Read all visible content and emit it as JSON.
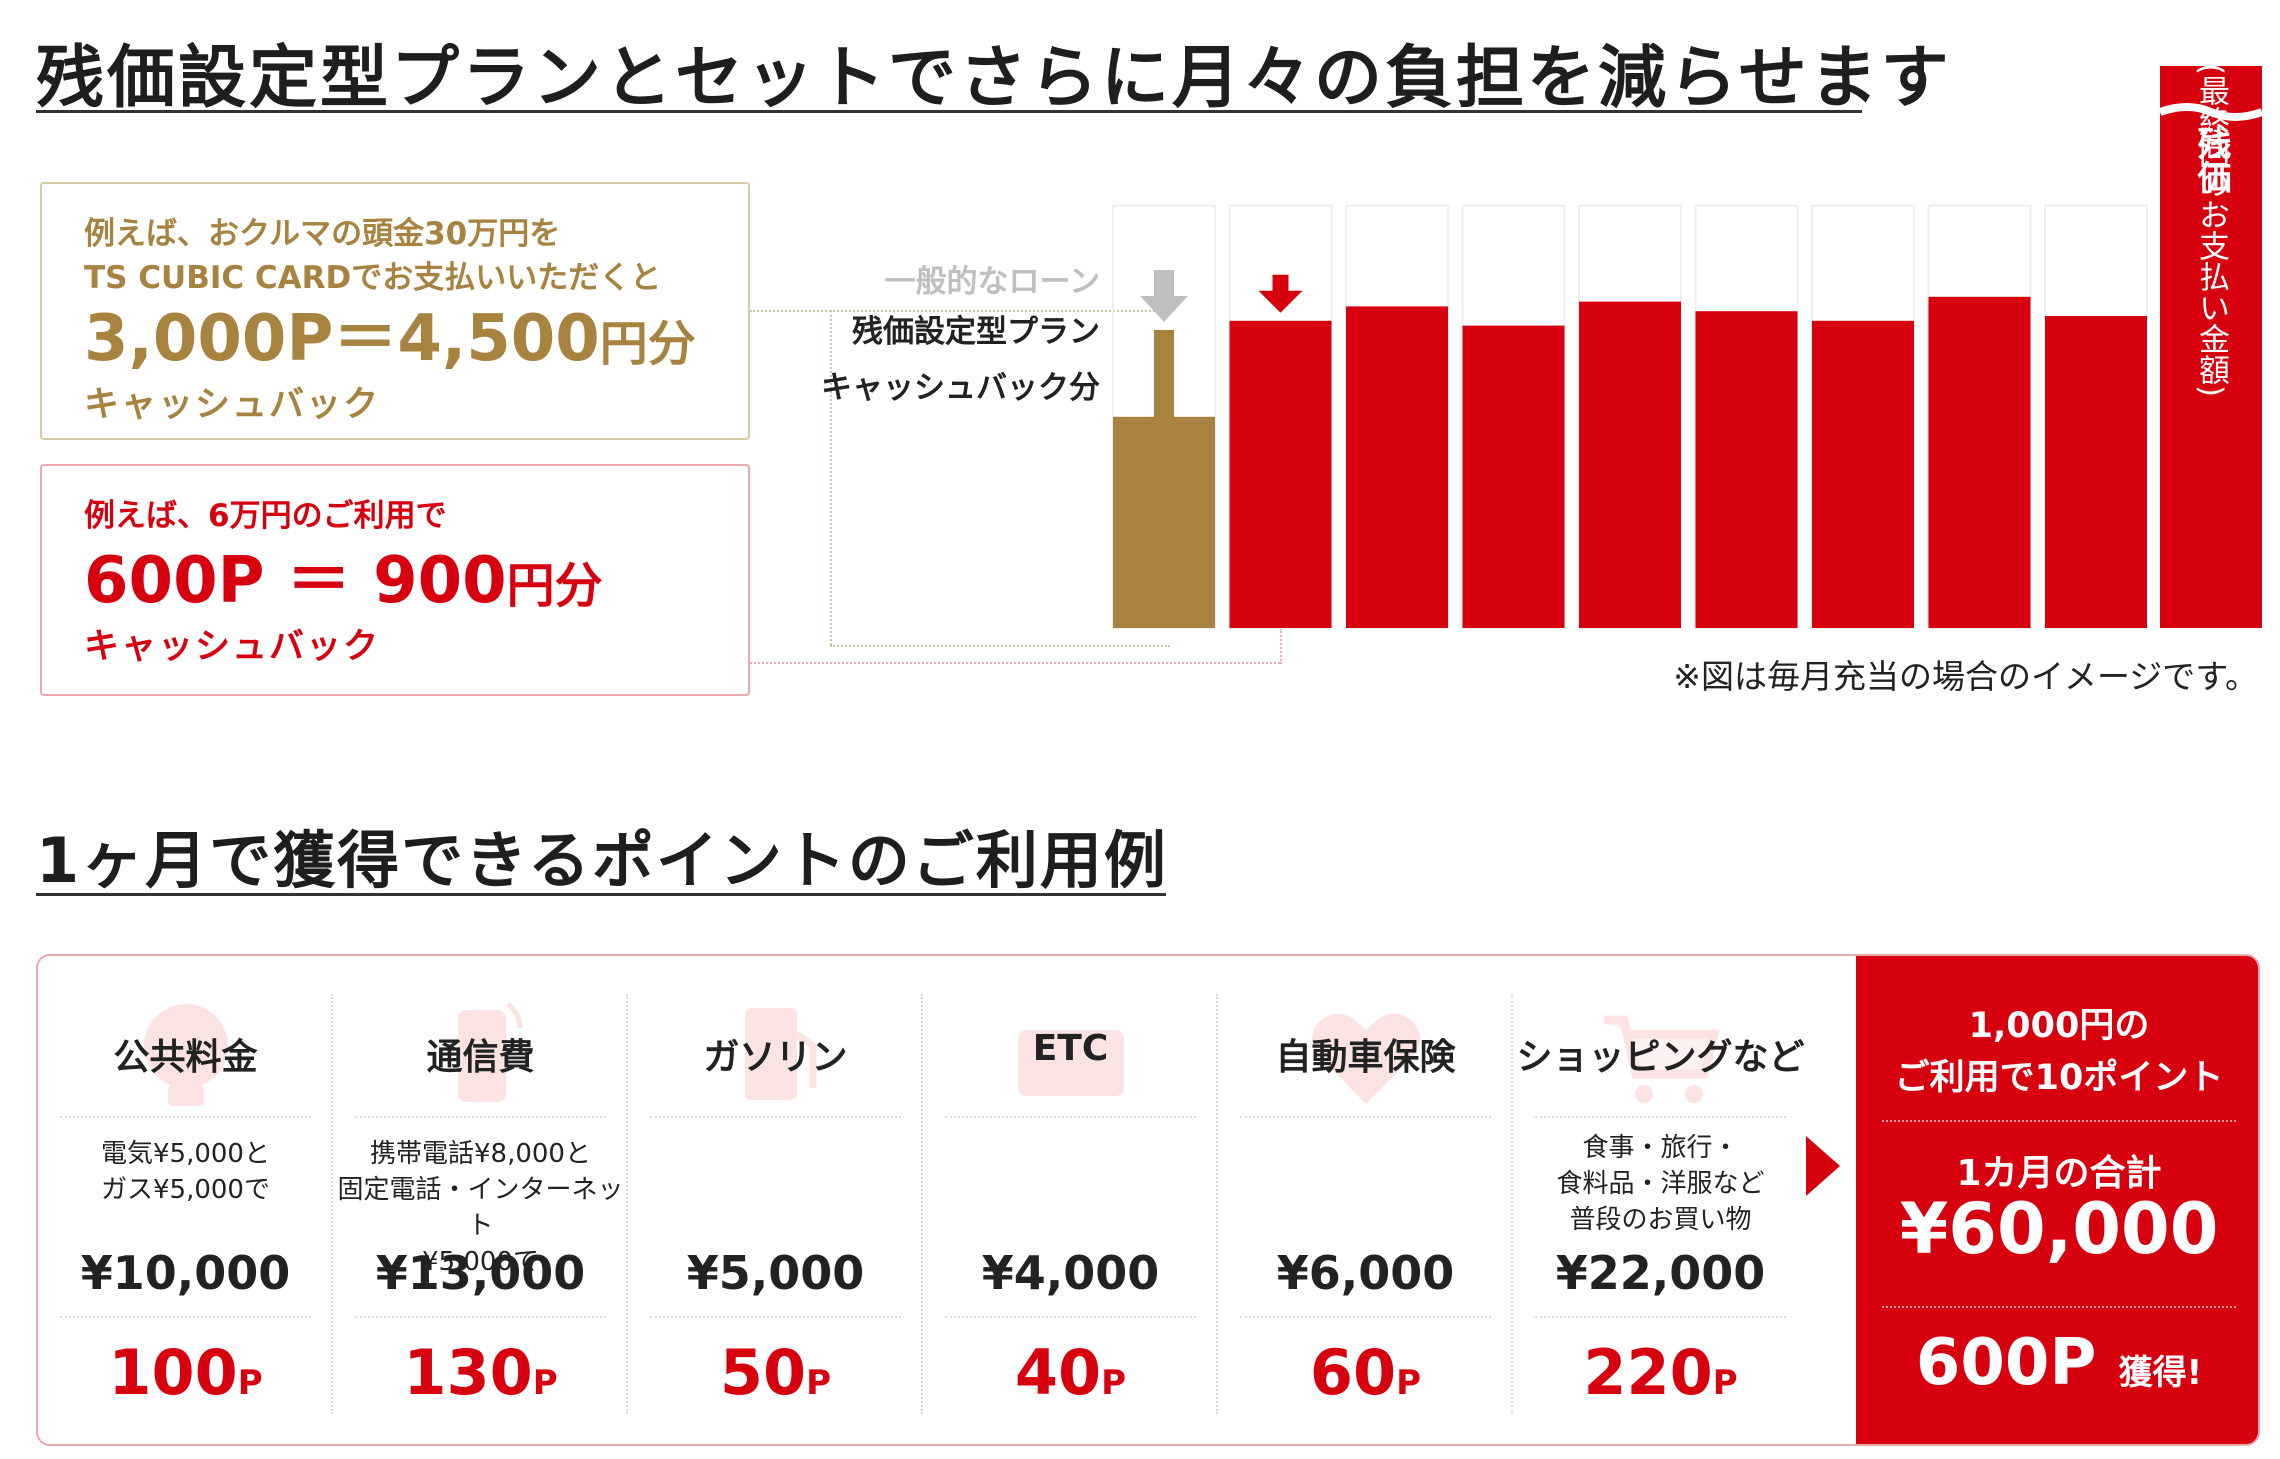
{
  "section1": {
    "title": "残価設定型プランとセットでさらに月々の負担を減らせます",
    "box_gold": {
      "line1": "例えば、おクルマの頭金30万円を",
      "line2": "TS CUBIC CARDでお支払いいただくと",
      "points": "3,000P",
      "equals": "＝",
      "yen_value": "4,500",
      "yen_unit": "円分",
      "cashback": "キャッシュバック"
    },
    "box_red": {
      "line1": "例えば、6万円のご利用で",
      "points": "600P",
      "equals": "＝",
      "yen_value": "900",
      "yen_unit": "円分",
      "cashback": "キャッシュバック"
    },
    "note": "※図は毎月充当の場合のイメージです。"
  },
  "chart_data": {
    "type": "bar",
    "labels": {
      "general_loan": "一般的なローン",
      "residual_plan": "残価設定型プラン",
      "cashback": "キャッシュバック分",
      "final_payment": "残価",
      "final_payment_note": "(最終回のお支払い金額)"
    },
    "values": [
      0.44,
      0.64,
      0.67,
      0.63,
      0.68,
      0.66,
      0.64,
      0.69,
      0.65
    ],
    "outline_values": [
      0.88,
      0.88,
      0.88,
      0.88,
      0.88,
      0.88,
      0.88,
      0.88,
      0.88
    ],
    "colors": {
      "gold": "#a8833f",
      "red": "#d7000f",
      "gray": "#bfbfbf"
    }
  },
  "section2": {
    "title": "1ヶ月で獲得できるポイントのご利用例",
    "items": [
      {
        "category": "公共料金",
        "icon": "lightbulb-icon",
        "desc": "電気¥5,000と\nガス¥5,000で",
        "amount": "¥10,000",
        "points": "100",
        "unit": "P"
      },
      {
        "category": "通信費",
        "icon": "smartphone-icon",
        "desc": "携帯電話¥8,000と\n固定電話・インターネット\n¥5,000で",
        "amount": "¥13,000",
        "points": "130",
        "unit": "P"
      },
      {
        "category": "ガソリン",
        "icon": "fuel-pump-icon",
        "desc": "",
        "amount": "¥5,000",
        "points": "50",
        "unit": "P"
      },
      {
        "category": "ETC",
        "icon": "etc-card-icon",
        "desc": "",
        "amount": "¥4,000",
        "points": "40",
        "unit": "P"
      },
      {
        "category": "自動車保険",
        "icon": "heart-car-icon",
        "desc": "",
        "amount": "¥6,000",
        "points": "60",
        "unit": "P"
      },
      {
        "category": "ショッピングなど",
        "icon": "shopping-cart-icon",
        "desc": "食事・旅行・\n食料品・洋服など\n普段のお買い物",
        "amount": "¥22,000",
        "points": "220",
        "unit": "P"
      }
    ],
    "total": {
      "rate": "1,000円の\nご利用で10ポイント",
      "month_label": "1カ月の合計",
      "month_total": "¥60,000",
      "earned_points": "600P",
      "earned_suffix": "獲得!"
    }
  }
}
